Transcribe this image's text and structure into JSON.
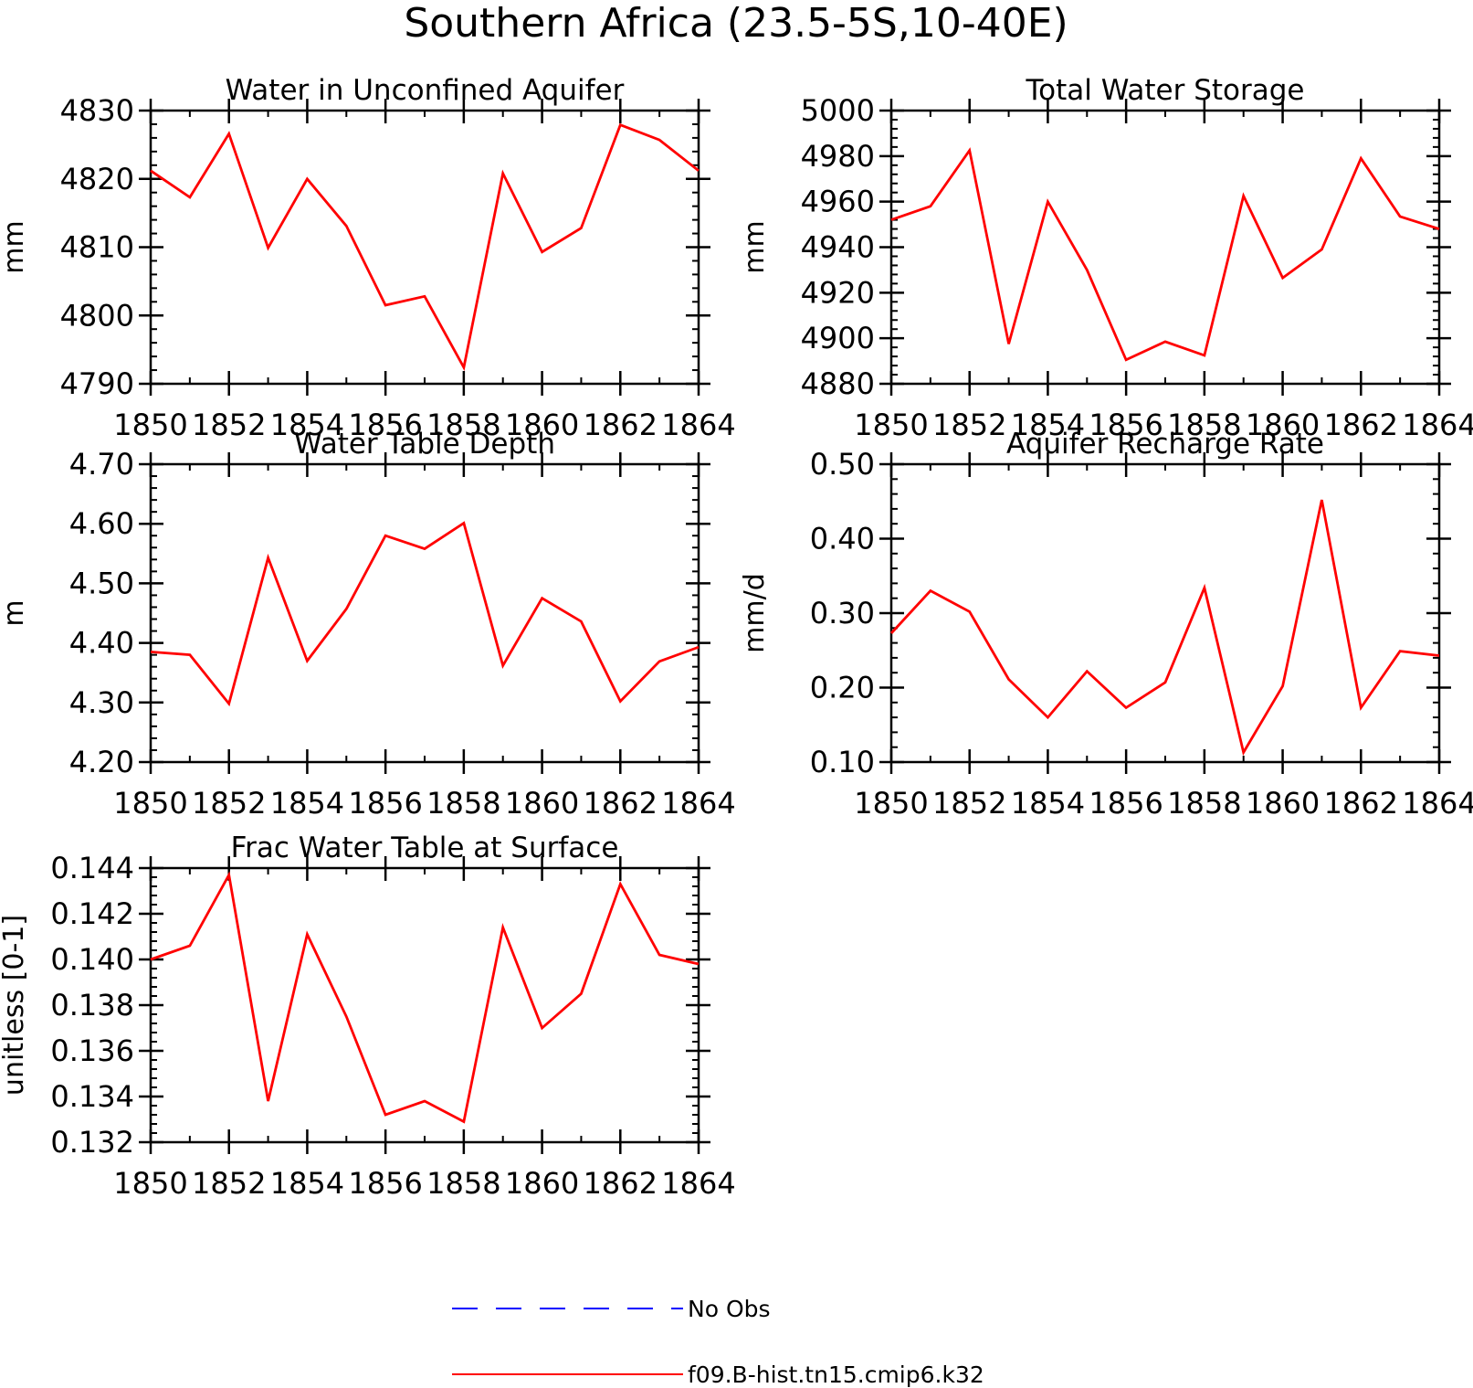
{
  "title": "Southern Africa (23.5-5S,10-40E)",
  "chart_data": [
    {
      "type": "line",
      "title": "Water in Unconfined Aquifer",
      "xlabel": "",
      "ylabel": "mm",
      "xlim": [
        1850,
        1864
      ],
      "ylim": [
        4790,
        4830
      ],
      "yticks": [
        4790,
        4800,
        4810,
        4820,
        4830
      ],
      "ytick_labels": [
        "4790",
        "4800",
        "4810",
        "4820",
        "4830"
      ],
      "xticks": [
        1850,
        1852,
        1854,
        1856,
        1858,
        1860,
        1862,
        1864
      ],
      "xtick_labels": [
        "1850",
        "1852",
        "1854",
        "1856",
        "1858",
        "1860",
        "1862",
        "1864"
      ],
      "x": [
        1850,
        1851,
        1852,
        1853,
        1854,
        1855,
        1856,
        1857,
        1858,
        1859,
        1860,
        1861,
        1862,
        1863,
        1864
      ],
      "series": [
        {
          "name": "f09.B-hist.tn15.cmip6.k32",
          "color": "#ff0000",
          "values": [
            4821.2,
            4817.3,
            4826.6,
            4809.9,
            4820.0,
            4813.1,
            4801.5,
            4802.8,
            4792.4,
            4820.8,
            4809.3,
            4812.8,
            4827.9,
            4825.7,
            4821.2
          ]
        }
      ]
    },
    {
      "type": "line",
      "title": "Total Water Storage",
      "xlabel": "",
      "ylabel": "mm",
      "xlim": [
        1850,
        1864
      ],
      "ylim": [
        4880,
        5000
      ],
      "yticks": [
        4880,
        4900,
        4920,
        4940,
        4960,
        4980,
        5000
      ],
      "ytick_labels": [
        "4880",
        "4900",
        "4920",
        "4940",
        "4960",
        "4980",
        "5000"
      ],
      "xticks": [
        1850,
        1852,
        1854,
        1856,
        1858,
        1860,
        1862,
        1864
      ],
      "xtick_labels": [
        "1850",
        "1852",
        "1854",
        "1856",
        "1858",
        "1860",
        "1862",
        "1864"
      ],
      "x": [
        1850,
        1851,
        1852,
        1853,
        1854,
        1855,
        1856,
        1857,
        1858,
        1859,
        1860,
        1861,
        1862,
        1863,
        1864
      ],
      "series": [
        {
          "name": "f09.B-hist.tn15.cmip6.k32",
          "color": "#ff0000",
          "values": [
            4952.0,
            4958.0,
            4982.5,
            4897.5,
            4960.0,
            4930.0,
            4890.5,
            4898.5,
            4892.5,
            4962.5,
            4926.5,
            4939.0,
            4979.0,
            4953.5,
            4948.0
          ]
        }
      ]
    },
    {
      "type": "line",
      "title": "Water Table Depth",
      "xlabel": "",
      "ylabel": "m",
      "xlim": [
        1850,
        1864
      ],
      "ylim": [
        4.2,
        4.7
      ],
      "yticks": [
        4.2,
        4.3,
        4.4,
        4.5,
        4.6,
        4.7
      ],
      "ytick_labels": [
        "4.20",
        "4.30",
        "4.40",
        "4.50",
        "4.60",
        "4.70"
      ],
      "xticks": [
        1850,
        1852,
        1854,
        1856,
        1858,
        1860,
        1862,
        1864
      ],
      "xtick_labels": [
        "1850",
        "1852",
        "1854",
        "1856",
        "1858",
        "1860",
        "1862",
        "1864"
      ],
      "x": [
        1850,
        1851,
        1852,
        1853,
        1854,
        1855,
        1856,
        1857,
        1858,
        1859,
        1860,
        1861,
        1862,
        1863,
        1864
      ],
      "series": [
        {
          "name": "f09.B-hist.tn15.cmip6.k32",
          "color": "#ff0000",
          "values": [
            4.385,
            4.38,
            4.298,
            4.543,
            4.37,
            4.457,
            4.58,
            4.558,
            4.601,
            4.362,
            4.475,
            4.436,
            4.302,
            4.369,
            4.393
          ]
        }
      ]
    },
    {
      "type": "line",
      "title": "Aquifer Recharge Rate",
      "xlabel": "",
      "ylabel": "mm/d",
      "xlim": [
        1850,
        1864
      ],
      "ylim": [
        0.1,
        0.5
      ],
      "yticks": [
        0.1,
        0.2,
        0.3,
        0.4,
        0.5
      ],
      "ytick_labels": [
        "0.10",
        "0.20",
        "0.30",
        "0.40",
        "0.50"
      ],
      "xticks": [
        1850,
        1852,
        1854,
        1856,
        1858,
        1860,
        1862,
        1864
      ],
      "xtick_labels": [
        "1850",
        "1852",
        "1854",
        "1856",
        "1858",
        "1860",
        "1862",
        "1864"
      ],
      "x": [
        1850,
        1851,
        1852,
        1853,
        1854,
        1855,
        1856,
        1857,
        1858,
        1859,
        1860,
        1861,
        1862,
        1863,
        1864
      ],
      "series": [
        {
          "name": "f09.B-hist.tn15.cmip6.k32",
          "color": "#ff0000",
          "values": [
            0.273,
            0.33,
            0.302,
            0.211,
            0.16,
            0.222,
            0.173,
            0.207,
            0.334,
            0.113,
            0.202,
            0.452,
            0.173,
            0.249,
            0.243
          ]
        }
      ]
    },
    {
      "type": "line",
      "title": "Frac Water Table at Surface",
      "xlabel": "",
      "ylabel": "unitless [0-1]",
      "xlim": [
        1850,
        1864
      ],
      "ylim": [
        0.132,
        0.144
      ],
      "yticks": [
        0.132,
        0.134,
        0.136,
        0.138,
        0.14,
        0.142,
        0.144
      ],
      "ytick_labels": [
        "0.132",
        "0.134",
        "0.136",
        "0.138",
        "0.140",
        "0.142",
        "0.144"
      ],
      "xticks": [
        1850,
        1852,
        1854,
        1856,
        1858,
        1860,
        1862,
        1864
      ],
      "xtick_labels": [
        "1850",
        "1852",
        "1854",
        "1856",
        "1858",
        "1860",
        "1862",
        "1864"
      ],
      "x": [
        1850,
        1851,
        1852,
        1853,
        1854,
        1855,
        1856,
        1857,
        1858,
        1859,
        1860,
        1861,
        1862,
        1863,
        1864
      ],
      "series": [
        {
          "name": "f09.B-hist.tn15.cmip6.k32",
          "color": "#ff0000",
          "values": [
            0.14,
            0.1406,
            0.1437,
            0.1338,
            0.1411,
            0.1375,
            0.1332,
            0.1338,
            0.1329,
            0.1414,
            0.137,
            0.1385,
            0.1433,
            0.1402,
            0.1398
          ]
        }
      ]
    }
  ],
  "legend": {
    "items": [
      {
        "label": "No Obs",
        "color": "#0000ff",
        "style": "dashed"
      },
      {
        "label": "f09.B-hist.tn15.cmip6.k32",
        "color": "#ff0000",
        "style": "solid"
      }
    ]
  }
}
